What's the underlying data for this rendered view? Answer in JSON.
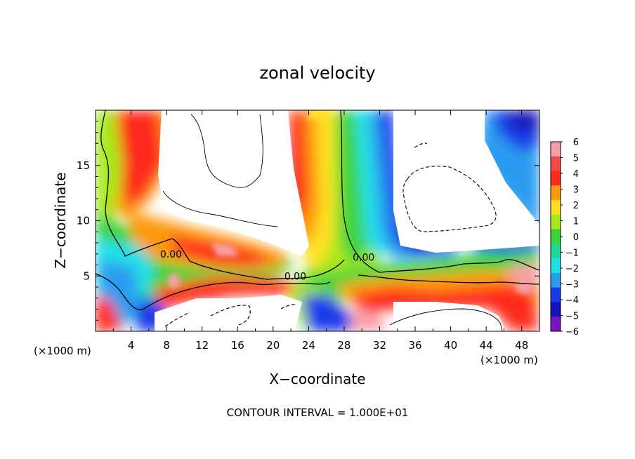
{
  "chart_data": {
    "type": "heatmap",
    "title": "zonal velocity",
    "xlabel": "X−coordinate",
    "ylabel": "Z−coordinate",
    "x_unit_left": "(×1000 m)",
    "x_unit_right": "(×1000 m)",
    "footer": "CONTOUR INTERVAL = 1.000E+01",
    "xlim": [
      0,
      50
    ],
    "ylim": [
      0,
      20
    ],
    "x_ticks": [
      4,
      8,
      12,
      16,
      20,
      24,
      28,
      32,
      36,
      40,
      44,
      48
    ],
    "y_ticks": [
      5,
      10,
      15
    ],
    "colorbar": {
      "levels": [
        6,
        5,
        4,
        3,
        2,
        1,
        0,
        -1,
        -2,
        -3,
        -4,
        -5,
        -6
      ],
      "colors": [
        "#f7a0a8",
        "#f04a4a",
        "#ff2a1a",
        "#ff9a10",
        "#ffe020",
        "#a8e81a",
        "#3cd43c",
        "#22d89a",
        "#22e0e8",
        "#2a9cf0",
        "#1a3ae8",
        "#1212b8",
        "#7a12c0"
      ]
    },
    "contour_labels": [
      {
        "text": "0.00",
        "x": 8.5,
        "y": 7.0
      },
      {
        "text": "0.00",
        "x": 22.5,
        "y": 5.0
      },
      {
        "text": "0.00",
        "x": 30.2,
        "y": 6.7
      }
    ]
  }
}
